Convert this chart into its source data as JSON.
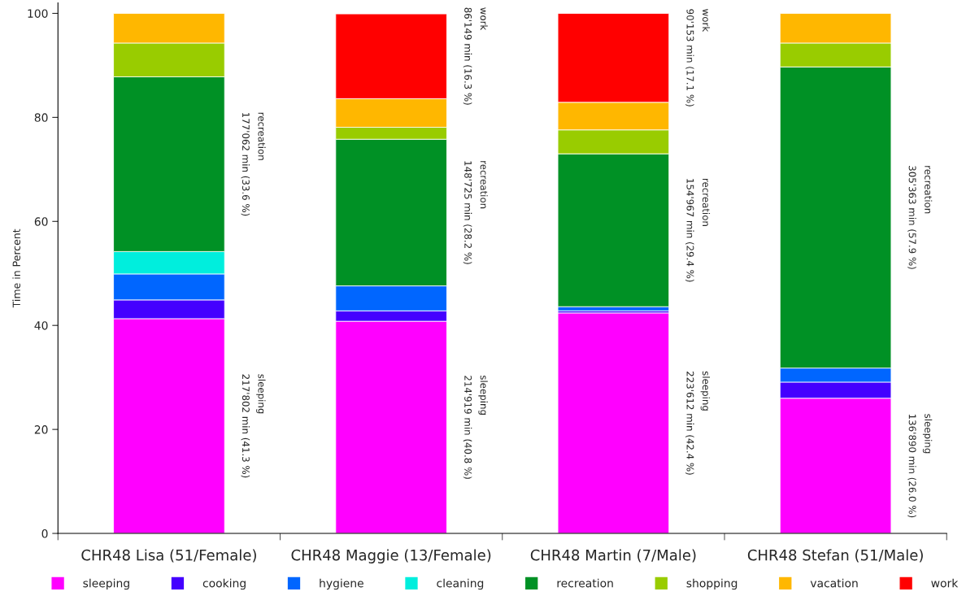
{
  "chart_data": {
    "type": "bar",
    "stacked": true,
    "ylabel": "Time in Percent",
    "categories": [
      "CHR48 Lisa (51/Female)",
      "CHR48 Maggie (13/Female)",
      "CHR48 Martin (7/Male)",
      "CHR48 Stefan (51/Male)"
    ],
    "ylim": [
      0,
      102
    ],
    "yticks": [
      0,
      20,
      40,
      60,
      80,
      100
    ],
    "grid": false,
    "legend": "bottom",
    "series": [
      {
        "name": "sleeping",
        "color": "#ff00ff",
        "values": [
          41.3,
          40.8,
          42.4,
          26.0
        ]
      },
      {
        "name": "cooking",
        "color": "#4400ff",
        "values": [
          3.6,
          2.0,
          0.4,
          3.1
        ]
      },
      {
        "name": "hygiene",
        "color": "#0066ff",
        "values": [
          5.0,
          4.8,
          0.8,
          2.7
        ]
      },
      {
        "name": "cleaning",
        "color": "#00eedd",
        "values": [
          4.3,
          null,
          null,
          null
        ]
      },
      {
        "name": "recreation",
        "color": "#009125",
        "values": [
          33.6,
          28.2,
          29.4,
          57.9
        ]
      },
      {
        "name": "shopping",
        "color": "#99cc00",
        "values": [
          6.5,
          2.3,
          4.6,
          4.6
        ]
      },
      {
        "name": "vacation",
        "color": "#ffb700",
        "values": [
          5.7,
          5.5,
          5.3,
          5.7
        ]
      },
      {
        "name": "work",
        "color": "#ff0000",
        "values": [
          null,
          16.3,
          17.1,
          null
        ]
      }
    ],
    "annotations": [
      "sleeping\n217'802 min (41.3 %)",
      "recreation\n177'062 min (33.6 %)",
      "sleeping\n214'919 min (40.8 %)",
      "recreation\n148'725 min (28.2 %)",
      "work\n86'149 min (16.3 %)",
      "sleeping\n223'612 min (42.4 %)",
      "recreation\n154'967 min (29.4 %)",
      "work\n90'153 min (17.1 %)",
      "sleeping\n136'890 min (26.0 %)",
      "recreation\n305'363 min (57.9 %)"
    ]
  }
}
